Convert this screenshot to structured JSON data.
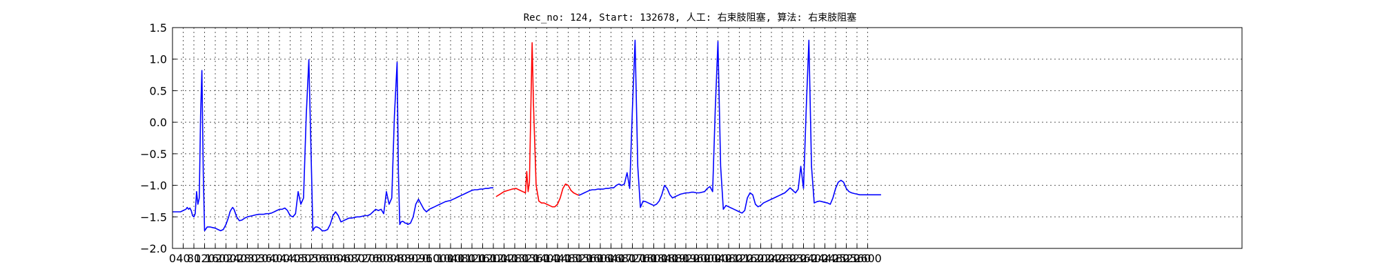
{
  "chart_data": {
    "type": "line",
    "title": "Rec_no: 124, Start: 132678, 人工: 右束肢阻塞, 算法: 右束肢阻塞",
    "xlabel": "",
    "ylabel": "",
    "xlim": [
      0,
      4000
    ],
    "ylim": [
      -2.0,
      1.5
    ],
    "grid": true,
    "x_tick_labels": [
      "0",
      "40",
      "80",
      "120",
      "160",
      "200",
      "240",
      "280",
      "320",
      "360",
      "400",
      "440",
      "480",
      "520",
      "560",
      "600",
      "640",
      "680",
      "720",
      "760",
      "800",
      "840",
      "880",
      "920",
      "960",
      "1000",
      "1040",
      "1080",
      "1120",
      "1160",
      "1200",
      "1240",
      "1280",
      "1320",
      "1360",
      "1400",
      "1440",
      "1480",
      "1520",
      "1560",
      "1600",
      "1640",
      "1680",
      "1720",
      "1760",
      "1800",
      "1840",
      "1880",
      "1920",
      "1960",
      "2000",
      "2040",
      "2080",
      "2120",
      "2160",
      "2200",
      "2240",
      "2280",
      "2320",
      "2360",
      "2400",
      "2440",
      "2480",
      "2520",
      "2560",
      "2600"
    ],
    "y_tick_labels": [
      "1.5",
      "1.0",
      "0.5",
      "0.0",
      "−0.5",
      "−1.0",
      "−1.5",
      "−2.0"
    ],
    "y_ticks": [
      1.5,
      1.0,
      0.5,
      0.0,
      -0.5,
      -1.0,
      -1.5,
      -2.0
    ],
    "series": [
      {
        "color": "#0000ff",
        "x": [
          0,
          30,
          40,
          50,
          55,
          60,
          65,
          70,
          75,
          80,
          85,
          90,
          95,
          100,
          105,
          110,
          115,
          120,
          130,
          140,
          150,
          160,
          170,
          180,
          190,
          200,
          210,
          215,
          220,
          225,
          230,
          235,
          240,
          250,
          260,
          270,
          280,
          290,
          300,
          310,
          320,
          330,
          340,
          350,
          360,
          370,
          380,
          390,
          400,
          410,
          420,
          430,
          440,
          450,
          460,
          470,
          480,
          490,
          500,
          510,
          520,
          525,
          530,
          535,
          540,
          545,
          550,
          555,
          560,
          570,
          580,
          590,
          600,
          610,
          620,
          630,
          640,
          650,
          660,
          670,
          680,
          690,
          700,
          710,
          720,
          730,
          740,
          750,
          760,
          770,
          780,
          790,
          800,
          810,
          820,
          830,
          840,
          845,
          850,
          855,
          860,
          865,
          870,
          875,
          880,
          890,
          900,
          910,
          920,
          930,
          940,
          950,
          960,
          970,
          980,
          990,
          1000,
          1010,
          1020,
          1030,
          1040,
          1050,
          1060,
          1070,
          1080,
          1090,
          1100,
          1110,
          1120,
          1130,
          1140,
          1150,
          1160,
          1170,
          1180,
          1190,
          1200
        ],
        "y": [
          -1.42,
          -1.42,
          -1.4,
          -1.38,
          -1.35,
          -1.38,
          -1.36,
          -1.4,
          -1.48,
          -1.5,
          -1.45,
          -1.1,
          -1.3,
          -1.2,
          0.1,
          0.82,
          -0.8,
          -1.72,
          -1.66,
          -1.66,
          -1.67,
          -1.68,
          -1.7,
          -1.72,
          -1.7,
          -1.62,
          -1.5,
          -1.42,
          -1.38,
          -1.35,
          -1.38,
          -1.44,
          -1.5,
          -1.56,
          -1.55,
          -1.52,
          -1.5,
          -1.49,
          -1.48,
          -1.47,
          -1.46,
          -1.46,
          -1.46,
          -1.45,
          -1.45,
          -1.44,
          -1.42,
          -1.4,
          -1.38,
          -1.38,
          -1.36,
          -1.4,
          -1.48,
          -1.5,
          -1.45,
          -1.1,
          -1.3,
          -1.2,
          0.1,
          0.99,
          -0.8,
          -1.72,
          -1.68,
          -1.66,
          -1.66,
          -1.67,
          -1.68,
          -1.7,
          -1.72,
          -1.72,
          -1.7,
          -1.62,
          -1.48,
          -1.42,
          -1.48,
          -1.58,
          -1.56,
          -1.54,
          -1.52,
          -1.52,
          -1.51,
          -1.5,
          -1.5,
          -1.49,
          -1.48,
          -1.48,
          -1.46,
          -1.42,
          -1.38,
          -1.4,
          -1.38,
          -1.45,
          -1.1,
          -1.3,
          -1.2,
          0.1,
          0.95,
          -0.8,
          -1.62,
          -1.58,
          -1.57,
          -1.58,
          -1.6,
          -1.6,
          -1.62,
          -1.6,
          -1.5,
          -1.3,
          -1.22,
          -1.3,
          -1.38,
          -1.42,
          -1.38,
          -1.36,
          -1.34,
          -1.32,
          -1.3,
          -1.28,
          -1.26,
          -1.25,
          -1.24,
          -1.22,
          -1.2,
          -1.18,
          -1.16,
          -1.14,
          -1.12,
          -1.1,
          -1.08,
          -1.07,
          -1.07,
          -1.06,
          -1.06,
          -1.05,
          -1.05,
          -1.04,
          -1.04
        ]
      },
      {
        "color": "#ff0000",
        "x": [
          1210,
          1225,
          1240,
          1255,
          1270,
          1285,
          1300,
          1310,
          1320,
          1325,
          1330,
          1335,
          1340,
          1345,
          1350,
          1360,
          1370,
          1380,
          1390,
          1400,
          1410,
          1420,
          1430,
          1440,
          1450,
          1460,
          1470,
          1480,
          1490,
          1500,
          1510,
          1520
        ],
        "y": [
          -1.18,
          -1.14,
          -1.1,
          -1.08,
          -1.06,
          -1.05,
          -1.08,
          -1.1,
          -1.12,
          -0.78,
          -1.1,
          -0.95,
          0.2,
          1.26,
          0.3,
          -1.0,
          -1.25,
          -1.28,
          -1.28,
          -1.3,
          -1.32,
          -1.34,
          -1.34,
          -1.3,
          -1.2,
          -1.05,
          -0.98,
          -1.0,
          -1.08,
          -1.12,
          -1.14,
          -1.16
        ]
      },
      {
        "color": "#0000ff",
        "x": [
          1520,
          1530,
          1540,
          1550,
          1560,
          1570,
          1580,
          1590,
          1600,
          1610,
          1620,
          1630,
          1640,
          1650,
          1660,
          1670,
          1680,
          1690,
          1700,
          1710,
          1720,
          1730,
          1740,
          1750,
          1760,
          1770,
          1780,
          1790,
          1800,
          1810,
          1820,
          1830,
          1840,
          1850,
          1860,
          1870,
          1880,
          1890,
          1900,
          1910,
          1920,
          1930,
          1940,
          1950,
          1960,
          1970,
          1980,
          1990,
          2000,
          2010,
          2020,
          2030,
          2040,
          2050,
          2060,
          2070,
          2080,
          2090,
          2100,
          2110,
          2120,
          2130,
          2140,
          2150,
          2160,
          2170,
          2180,
          2190,
          2200,
          2210,
          2220,
          2230,
          2240,
          2250,
          2260,
          2270,
          2280,
          2290,
          2300,
          2310,
          2320,
          2330,
          2340,
          2350,
          2360,
          2370,
          2380,
          2390,
          2400,
          2410,
          2420,
          2430,
          2440,
          2450,
          2460,
          2470,
          2480,
          2490,
          2500,
          2510,
          2520,
          2530,
          2540,
          2550,
          2560,
          2570,
          2580,
          2590,
          2600,
          2610,
          2620,
          2630,
          2640,
          2650
        ],
        "y": [
          -1.16,
          -1.14,
          -1.12,
          -1.1,
          -1.08,
          -1.07,
          -1.07,
          -1.06,
          -1.06,
          -1.06,
          -1.05,
          -1.05,
          -1.04,
          -1.04,
          -1.0,
          -0.98,
          -1.0,
          -0.98,
          -0.8,
          -1.05,
          0.2,
          1.3,
          -0.7,
          -1.35,
          -1.25,
          -1.26,
          -1.28,
          -1.3,
          -1.32,
          -1.3,
          -1.25,
          -1.15,
          -1.0,
          -1.05,
          -1.15,
          -1.2,
          -1.18,
          -1.16,
          -1.14,
          -1.13,
          -1.12,
          -1.12,
          -1.11,
          -1.11,
          -1.12,
          -1.12,
          -1.11,
          -1.1,
          -1.05,
          -1.02,
          -1.1,
          0.2,
          1.28,
          -0.7,
          -1.38,
          -1.32,
          -1.34,
          -1.36,
          -1.38,
          -1.4,
          -1.42,
          -1.44,
          -1.4,
          -1.2,
          -1.12,
          -1.15,
          -1.3,
          -1.34,
          -1.32,
          -1.28,
          -1.26,
          -1.24,
          -1.22,
          -1.2,
          -1.18,
          -1.16,
          -1.14,
          -1.12,
          -1.08,
          -1.04,
          -1.08,
          -1.12,
          -1.06,
          -0.7,
          -1.05,
          0.2,
          1.3,
          -0.7,
          -1.28,
          -1.26,
          -1.25,
          -1.26,
          -1.27,
          -1.28,
          -1.3,
          -1.2,
          -1.05,
          -0.95,
          -0.92,
          -0.95,
          -1.05,
          -1.1,
          -1.12,
          -1.13,
          -1.14,
          -1.15,
          -1.15,
          -1.15,
          -1.15,
          -1.15,
          -1.15,
          -1.15,
          -1.15,
          -1.15
        ]
      }
    ]
  }
}
